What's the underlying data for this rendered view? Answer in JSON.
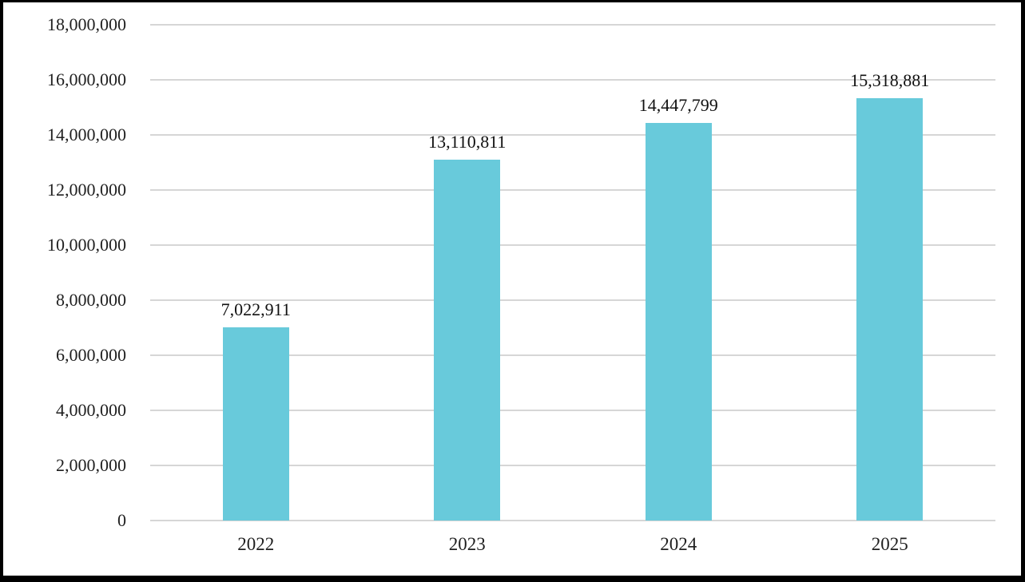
{
  "chart": {
    "background_color": "#FFFFFF",
    "frame_border_color": "#000000",
    "bar_color": "#68CADB",
    "gridline_color": "#D6D6D6",
    "axis_line_color": "#D6D6D6",
    "tick_text_color": "#1F1F1F",
    "data_label_color": "#111111"
  },
  "chart_data": {
    "type": "bar",
    "title": "",
    "xlabel": "",
    "ylabel": "",
    "categories": [
      "2022",
      "2023",
      "2024",
      "2025"
    ],
    "values": [
      7022911,
      13110811,
      14447799,
      15318881
    ],
    "data_labels": [
      "7,022,911",
      "13,110,811",
      "14,447,799",
      "15,318,881"
    ],
    "ylim": [
      0,
      18000000
    ],
    "ytick_interval": 2000000,
    "ytick_values": [
      0,
      2000000,
      4000000,
      6000000,
      8000000,
      10000000,
      12000000,
      14000000,
      16000000,
      18000000
    ],
    "ytick_labels": [
      "0",
      "2,000,000",
      "4,000,000",
      "6,000,000",
      "8,000,000",
      "10,000,000",
      "12,000,000",
      "14,000,000",
      "16,000,000",
      "18,000,000"
    ],
    "grid": true,
    "legend": false,
    "series_count": 1
  }
}
